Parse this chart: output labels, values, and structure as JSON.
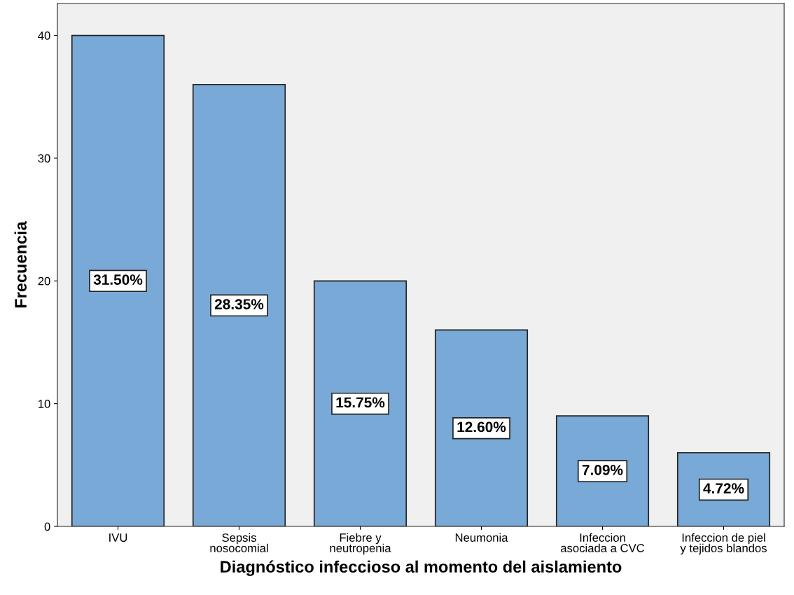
{
  "chart_data": {
    "type": "bar",
    "xlabel": "Diagnóstico infeccioso al momento del aislamiento",
    "ylabel": "Frecuencia",
    "categories": [
      "IVU",
      "Sepsis\nnosocomial",
      "Fiebre y\nneutropenia",
      "Neumonia",
      "Infeccion\nasociada a CVC",
      "Infeccion de piel\ny tejidos blandos"
    ],
    "values": [
      40,
      36,
      20,
      16,
      9,
      6
    ],
    "annotations": [
      "31.50%",
      "28.35%",
      "15.75%",
      "12.60%",
      "7.09%",
      "4.72%"
    ],
    "color": "#79a9d6",
    "ylim": [
      0,
      42.6
    ],
    "yticks": [
      0,
      10,
      20,
      30,
      40
    ],
    "grid": false,
    "legend": false
  }
}
